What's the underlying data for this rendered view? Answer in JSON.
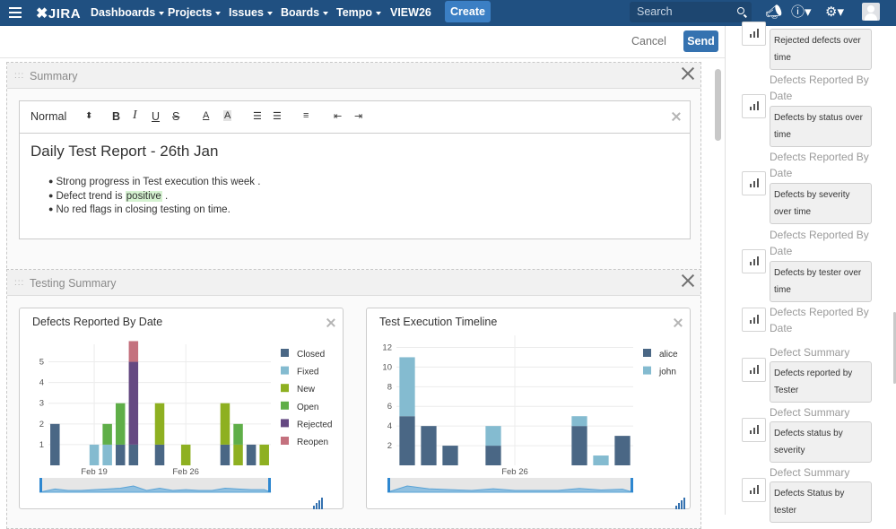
{
  "topnav": {
    "logo": "JIRA",
    "items": [
      {
        "label": "Dashboards",
        "caret": true
      },
      {
        "label": "Projects",
        "caret": true
      },
      {
        "label": "Issues",
        "caret": true
      },
      {
        "label": "Boards",
        "caret": true
      },
      {
        "label": "Tempo",
        "caret": true
      },
      {
        "label": "VIEW26",
        "caret": false
      }
    ],
    "create": "Create",
    "search_placeholder": "Search"
  },
  "actions": {
    "cancel": "Cancel",
    "send": "Send"
  },
  "summary_panel": {
    "title": "Summary",
    "toolbar": {
      "format": "Normal"
    },
    "heading": "Daily Test Report - 26th Jan",
    "bullets": [
      {
        "text": "Strong progress in Test execution this week .",
        "pre": "",
        "hl": "",
        "post": ""
      },
      {
        "text": "",
        "pre": "Defect trend is ",
        "hl": "positive",
        "post": " ."
      },
      {
        "text": "No red flags in closing testing on time.",
        "pre": "",
        "hl": "",
        "post": ""
      }
    ]
  },
  "testing_panel": {
    "title": "Testing Summary"
  },
  "chart_data": [
    {
      "type": "bar",
      "stacked": true,
      "title": "Defects Reported By Date",
      "ylim": [
        0,
        5.5
      ],
      "yticks": [
        1,
        2,
        3,
        4,
        5
      ],
      "xtick_labels": [
        {
          "index": 3,
          "label": "Feb 19"
        },
        {
          "index": 10,
          "label": "Feb 26"
        }
      ],
      "categories": [
        "c1",
        "c2",
        "c3",
        "c4",
        "c5",
        "c6",
        "c7",
        "c8",
        "c9",
        "c10",
        "c11",
        "c12",
        "c13",
        "c14",
        "c15",
        "c16",
        "c17"
      ],
      "series": [
        {
          "name": "Closed",
          "color": "#4a6785",
          "values": [
            2,
            0,
            0,
            0,
            0,
            1,
            1,
            0,
            1,
            0,
            0,
            0,
            0,
            1,
            0,
            1,
            0
          ]
        },
        {
          "name": "Fixed",
          "color": "#84bbd0",
          "values": [
            0,
            0,
            0,
            1,
            1,
            0,
            0,
            0,
            0,
            0,
            0,
            0,
            0,
            0,
            0,
            0,
            0
          ]
        },
        {
          "name": "New",
          "color": "#8eb021",
          "values": [
            0,
            0,
            0,
            0,
            0,
            0,
            0,
            0,
            2,
            0,
            1,
            0,
            0,
            2,
            1,
            0,
            1
          ]
        },
        {
          "name": "Open",
          "color": "#5fae48",
          "values": [
            0,
            0,
            0,
            0,
            1,
            2,
            0,
            0,
            0,
            0,
            0,
            0,
            0,
            0,
            1,
            0,
            0
          ]
        },
        {
          "name": "Rejected",
          "color": "#654982",
          "values": [
            0,
            0,
            0,
            0,
            0,
            0,
            4,
            0,
            0,
            0,
            0,
            0,
            0,
            0,
            0,
            0,
            0
          ]
        },
        {
          "name": "Reopen",
          "color": "#c4717e",
          "values": [
            0,
            0,
            0,
            0,
            0,
            0,
            1,
            0,
            0,
            0,
            0,
            0,
            0,
            0,
            0,
            0,
            0
          ]
        }
      ]
    },
    {
      "type": "bar",
      "stacked": true,
      "title": "Test Execution Timeline",
      "ylim": [
        0,
        12.5
      ],
      "yticks": [
        2,
        4,
        6,
        8,
        10,
        12
      ],
      "xtick_labels": [
        {
          "index": 5,
          "label": "Feb 26"
        }
      ],
      "categories": [
        "c1",
        "c2",
        "c3",
        "c4",
        "c5",
        "c6",
        "c7",
        "c8",
        "c9",
        "c10",
        "c11"
      ],
      "series": [
        {
          "name": "alice",
          "color": "#4a6785",
          "values": [
            5,
            4,
            2,
            0,
            2,
            0,
            0,
            0,
            4,
            0,
            3
          ]
        },
        {
          "name": "john",
          "color": "#84bbd0",
          "values": [
            6,
            0,
            0,
            0,
            2,
            0,
            0,
            0,
            1,
            1,
            0
          ]
        }
      ]
    }
  ],
  "sidebar": {
    "entries": [
      {
        "heading": "",
        "card": "Rejected defects over time"
      },
      {
        "heading": "Defects Reported By Date",
        "card": "Defects by status over time"
      },
      {
        "heading": "Defects Reported By Date",
        "card": "Defects by severity over time"
      },
      {
        "heading": "Defects Reported By Date",
        "card": "Defects by tester over time"
      },
      {
        "heading": "Defects Reported By Date",
        "card": ""
      },
      {
        "heading": "Defect Summary",
        "card": "Defects reported by Tester"
      },
      {
        "heading": "Defect Summary",
        "card": "Defects status by severity"
      },
      {
        "heading": "Defect Summary",
        "card": "Defects Status by tester"
      }
    ]
  }
}
